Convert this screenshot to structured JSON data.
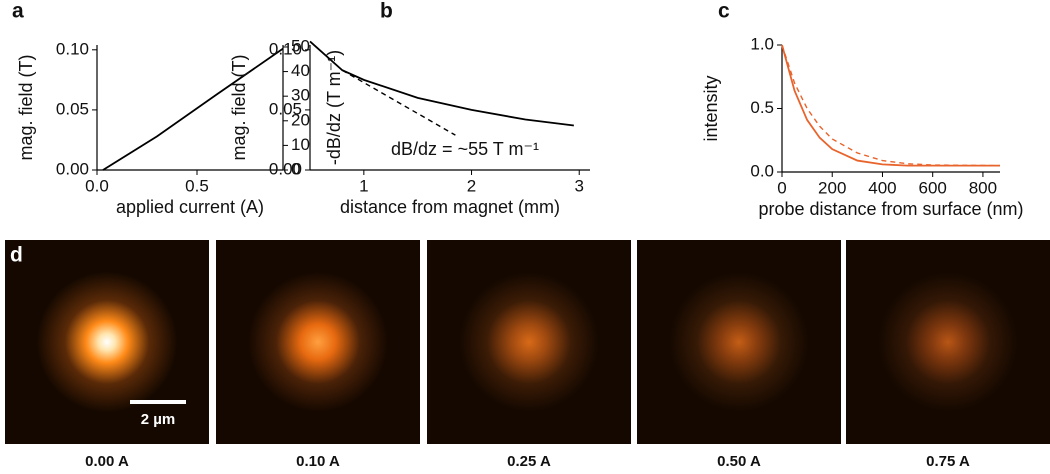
{
  "chart_data": [
    {
      "type": "line",
      "label": "a",
      "xlabel": "applied current (A)",
      "ylabel": "mag. field (T)",
      "y2label": "-dB/dz (T m⁻¹)",
      "xlim": [
        0,
        0.93
      ],
      "xticks": [
        {
          "value": 0,
          "label": "0.0"
        },
        {
          "value": 0.5,
          "label": "0.5"
        }
      ],
      "ylim": [
        0,
        0.104
      ],
      "yticks": [
        {
          "value": 0,
          "label": "0.00"
        },
        {
          "value": 0.05,
          "label": "0.05"
        },
        {
          "value": 0.1,
          "label": "0.10"
        }
      ],
      "y2lim": [
        0,
        50.8
      ],
      "y2ticks": [
        0,
        10,
        20,
        30,
        40,
        50
      ],
      "series": [
        {
          "color": "#000000",
          "x": [
            0.03,
            0.3,
            0.6,
            0.93
          ],
          "values": [
            0,
            0.028,
            0.063,
            0.101
          ]
        }
      ]
    },
    {
      "type": "line",
      "label": "b",
      "xlabel": "distance from magnet (mm)",
      "ylabel": "mag. field (T)",
      "annotation": "dB/dz = ~55 T m⁻¹",
      "xlim": [
        0.5,
        3.1
      ],
      "xticks": [
        1,
        2,
        3
      ],
      "ylim": [
        0,
        0.104
      ],
      "yticks": [
        {
          "value": 0,
          "label": "0.00"
        },
        {
          "value": 0.05,
          "label": "0.05"
        },
        {
          "value": 0.1,
          "label": "0.10"
        }
      ],
      "series": [
        {
          "color": "#000000",
          "dashed": false,
          "x": [
            0.5,
            0.8,
            1.0,
            1.5,
            2.0,
            2.5,
            2.95
          ],
          "values": [
            0.107,
            0.083,
            0.075,
            0.06,
            0.05,
            0.042,
            0.037
          ]
        },
        {
          "color": "#000000",
          "dashed": true,
          "x": [
            0.8,
            1.85
          ],
          "values": [
            0.083,
            0.029
          ]
        }
      ]
    },
    {
      "type": "line",
      "label": "c",
      "xlabel": "probe distance from surface (nm)",
      "ylabel": "intensity",
      "xlim": [
        0,
        868
      ],
      "xticks": [
        0,
        200,
        400,
        600,
        800
      ],
      "ylim": [
        0,
        1.0
      ],
      "yticks": [
        {
          "value": 0,
          "label": "0.0"
        },
        {
          "value": 0.5,
          "label": "0.5"
        },
        {
          "value": 1.0,
          "label": "1.0"
        }
      ],
      "series": [
        {
          "color": "#e8642c",
          "dashed": false,
          "x": [
            0,
            50,
            100,
            150,
            200,
            300,
            400,
            500,
            600,
            868
          ],
          "values": [
            1,
            0.64,
            0.41,
            0.27,
            0.18,
            0.09,
            0.06,
            0.05,
            0.05,
            0.05
          ]
        },
        {
          "color": "#e8642c",
          "dashed": true,
          "x": [
            0,
            50,
            100,
            150,
            200,
            300,
            400,
            500,
            600,
            868
          ],
          "values": [
            1,
            0.7,
            0.5,
            0.36,
            0.26,
            0.15,
            0.09,
            0.065,
            0.055,
            0.05
          ]
        }
      ]
    }
  ],
  "panel_d": {
    "label": "d",
    "scale_bar": "2 µm",
    "images": [
      "0.00 A",
      "0.10 A",
      "0.25 A",
      "0.50 A",
      "0.75 A"
    ]
  }
}
